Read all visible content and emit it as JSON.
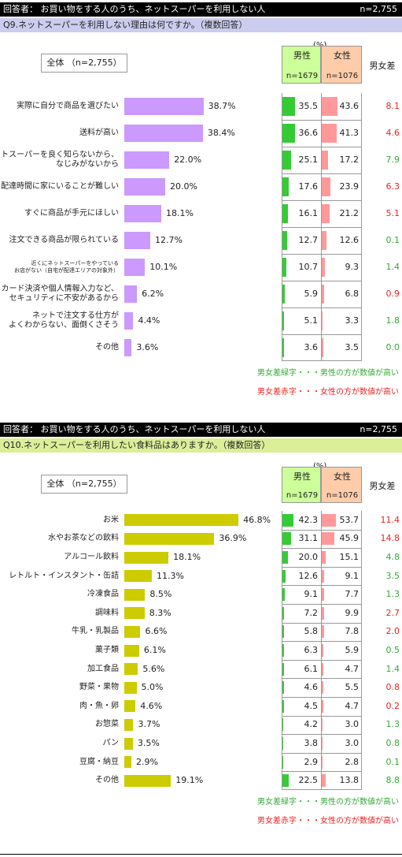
{
  "colors": {
    "green": "#33cc33",
    "pink": "#ff9999",
    "q9_bar": "#cc99ff",
    "q10_bar": "#cccc00",
    "diff_green": "#33aa33",
    "diff_red": "#ee2222"
  },
  "q9": {
    "respondent": "回答者： お買い物をする人のうち、ネットスーパーを利用しない人",
    "n_total": "n=2,755",
    "question": "Q9.ネットスーパーを利用しない理由は何ですか。（複数回答）",
    "question_bg": "#ccccee",
    "all_label": "全体 （n=2,755）",
    "pct_unit": "(%)",
    "male_label": "男性",
    "male_n": "n=1679",
    "female_label": "女性",
    "female_n": "n=1076",
    "diff_label": "男女差",
    "legend_green": "男女差緑字・・・男性の方が数値が高い",
    "legend_red": "男女差赤字・・・女性の方が数値が高い"
  },
  "q10": {
    "respondent": "回答者： お買い物をする人のうち、ネットスーパーを利用しない人",
    "n_total": "n=2,755",
    "question": "Q10.ネットスーパーを利用したい食料品はありますか。（複数回答）",
    "question_bg": "#ddee99",
    "all_label": "全体 （n=2,755）",
    "pct_unit": "(%)",
    "male_label": "男性",
    "male_n": "n=1679",
    "female_label": "女性",
    "female_n": "n=1076",
    "diff_label": "男女差",
    "legend_green": "男女差緑字・・・男性の方が数値が高い",
    "legend_red": "男女差赤字・・・女性の方が数値が高い"
  },
  "chart_data": [
    {
      "type": "bar",
      "title": "Q9.ネットスーパーを利用しない理由は何ですか。（複数回答）",
      "categories": [
        [
          "実際に自分で商品を選びたい"
        ],
        [
          "送料が高い"
        ],
        [
          "ネットスーパーを良く知らないから、",
          "なじみがないから"
        ],
        [
          "配達時間に家にいることが難しい"
        ],
        [
          "すぐに商品が手元にほしい"
        ],
        [
          "注文できる商品が限られている"
        ],
        [
          "近くにネットスーパーをやっている",
          "お店がない（自宅が配達エリアの対象外）"
        ],
        [
          "カード決済や個人情報入力など、",
          "セキュリティに不安があるから"
        ],
        [
          "ネットで注文する仕方が",
          "よくわからない、面倒くさそう"
        ],
        [
          "その他"
        ]
      ],
      "small_label_index": 6,
      "series": [
        {
          "name": "全体",
          "values": [
            38.7,
            38.4,
            22.0,
            20.0,
            18.1,
            12.7,
            10.1,
            6.2,
            4.4,
            3.6
          ]
        },
        {
          "name": "男性",
          "values": [
            35.5,
            36.6,
            25.1,
            17.6,
            16.1,
            12.7,
            10.7,
            5.9,
            5.1,
            3.6
          ]
        },
        {
          "name": "女性",
          "values": [
            43.6,
            41.3,
            17.2,
            23.9,
            21.2,
            12.6,
            9.3,
            6.8,
            3.3,
            3.5
          ]
        },
        {
          "name": "男女差",
          "values": [
            8.1,
            4.6,
            7.9,
            6.3,
            5.1,
            0.1,
            1.4,
            0.9,
            1.8,
            0.0
          ]
        }
      ]
    },
    {
      "type": "bar",
      "title": "Q10.ネットスーパーを利用したい食料品はありますか。（複数回答）",
      "categories": [
        [
          "お米"
        ],
        [
          "水やお茶などの飲料"
        ],
        [
          "アルコール飲料"
        ],
        [
          "レトルト・インスタント・缶詰"
        ],
        [
          "冷凍食品"
        ],
        [
          "調味料"
        ],
        [
          "牛乳・乳製品"
        ],
        [
          "菓子類"
        ],
        [
          "加工食品"
        ],
        [
          "野菜・果物"
        ],
        [
          "肉・魚・卵"
        ],
        [
          "お惣菜"
        ],
        [
          "パン"
        ],
        [
          "豆腐・納豆"
        ],
        [
          "その他"
        ]
      ],
      "series": [
        {
          "name": "全体",
          "values": [
            46.8,
            36.9,
            18.1,
            11.3,
            8.5,
            8.3,
            6.6,
            6.1,
            5.6,
            5.0,
            4.6,
            3.7,
            3.5,
            2.9,
            19.1
          ]
        },
        {
          "name": "男性",
          "values": [
            42.3,
            31.1,
            20.0,
            12.6,
            9.1,
            7.2,
            5.8,
            6.3,
            6.1,
            4.6,
            4.5,
            4.2,
            3.8,
            2.9,
            22.5
          ]
        },
        {
          "name": "女性",
          "values": [
            53.7,
            45.9,
            15.1,
            9.1,
            7.7,
            9.9,
            7.8,
            5.9,
            4.7,
            5.5,
            4.7,
            3.0,
            3.0,
            2.8,
            13.8
          ]
        },
        {
          "name": "男女差",
          "values": [
            11.4,
            14.8,
            4.8,
            3.5,
            1.3,
            2.7,
            2.0,
            0.5,
            1.4,
            0.8,
            0.2,
            1.3,
            0.8,
            0.1,
            8.8
          ]
        }
      ]
    }
  ]
}
